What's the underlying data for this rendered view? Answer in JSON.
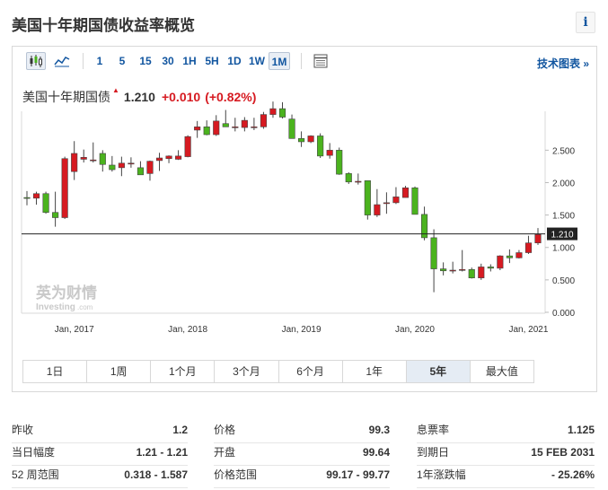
{
  "title": "美国十年期国债收益率概览",
  "info_icon": "i",
  "toolbar": {
    "chart_icons": [
      "candlestick-icon",
      "area-chart-icon"
    ],
    "intervals": [
      "1",
      "5",
      "15",
      "30",
      "1H",
      "5H",
      "1D",
      "1W",
      "1M"
    ],
    "active_interval": "1M",
    "table_icon": "table-icon",
    "tech_link": "技术图表 »"
  },
  "quote": {
    "name": "美国十年期国债",
    "price": "1.210",
    "change": "+0.010",
    "change_pct": "(+0.82%)"
  },
  "watermark": {
    "brand_cn": "英为财情",
    "brand_en": "Investing",
    "brand_suffix": ".com"
  },
  "colors": {
    "up": "#d61a21",
    "down": "#4bb31e",
    "link": "#1256a0"
  },
  "range_tabs": [
    "1日",
    "1周",
    "1个月",
    "3个月",
    "6个月",
    "1年",
    "5年",
    "最大值"
  ],
  "active_range": "5年",
  "chart_data": {
    "type": "candlestick",
    "x_tick_labels": [
      "Jan, 2017",
      "Jan, 2018",
      "Jan, 2019",
      "Jan, 2020",
      "Jan, 2021"
    ],
    "y_tick_labels": [
      "0.000",
      "0.500",
      "1.000",
      "1.500",
      "2.000",
      "2.500"
    ],
    "ylim": [
      0,
      3.1
    ],
    "last_price_label": "1.210",
    "last_price": 1.21,
    "months": [
      "2016-08",
      "2016-09",
      "2016-10",
      "2016-11",
      "2016-12",
      "2017-01",
      "2017-02",
      "2017-03",
      "2017-04",
      "2017-05",
      "2017-06",
      "2017-07",
      "2017-08",
      "2017-09",
      "2017-10",
      "2017-11",
      "2017-12",
      "2018-01",
      "2018-02",
      "2018-03",
      "2018-04",
      "2018-05",
      "2018-06",
      "2018-07",
      "2018-08",
      "2018-09",
      "2018-10",
      "2018-11",
      "2018-12",
      "2019-01",
      "2019-02",
      "2019-03",
      "2019-04",
      "2019-05",
      "2019-06",
      "2019-07",
      "2019-08",
      "2019-09",
      "2019-10",
      "2019-11",
      "2019-12",
      "2020-01",
      "2020-02",
      "2020-03",
      "2020-04",
      "2020-05",
      "2020-06",
      "2020-07",
      "2020-08",
      "2020-09",
      "2020-10",
      "2020-11",
      "2020-12",
      "2021-01",
      "2021-02"
    ],
    "open": [
      1.77,
      1.76,
      1.83,
      1.54,
      1.46,
      2.17,
      2.36,
      2.35,
      2.45,
      2.27,
      2.23,
      2.29,
      2.23,
      2.14,
      2.34,
      2.37,
      2.36,
      2.4,
      2.81,
      2.86,
      2.74,
      2.91,
      2.86,
      2.85,
      2.85,
      2.86,
      3.05,
      3.14,
      2.98,
      2.68,
      2.63,
      2.72,
      2.42,
      2.5,
      2.14,
      2.02,
      2.03,
      1.5,
      1.68,
      1.69,
      1.77,
      1.92,
      1.51,
      1.15,
      0.67,
      0.64,
      0.65,
      0.66,
      0.53,
      0.7,
      0.68,
      0.87,
      0.84,
      0.92,
      1.07
    ],
    "close": [
      1.76,
      1.83,
      1.54,
      1.46,
      2.37,
      2.45,
      2.39,
      2.35,
      2.28,
      2.2,
      2.3,
      2.3,
      2.12,
      2.33,
      2.38,
      2.41,
      2.41,
      2.71,
      2.86,
      2.74,
      2.95,
      2.86,
      2.86,
      2.96,
      2.86,
      3.05,
      3.14,
      3.01,
      2.68,
      2.63,
      2.72,
      2.41,
      2.5,
      2.13,
      2.01,
      2.02,
      1.5,
      1.66,
      1.69,
      1.78,
      1.92,
      1.51,
      1.15,
      0.67,
      0.64,
      0.65,
      0.66,
      0.53,
      0.7,
      0.68,
      0.87,
      0.84,
      0.92,
      1.07,
      1.2
    ],
    "high": [
      1.87,
      1.86,
      1.86,
      1.86,
      2.4,
      2.64,
      2.51,
      2.62,
      2.5,
      2.41,
      2.4,
      2.39,
      2.33,
      2.34,
      2.46,
      2.42,
      2.5,
      2.73,
      2.95,
      2.96,
      3.04,
      3.12,
      3.0,
      3.01,
      3.0,
      3.09,
      3.25,
      3.24,
      3.05,
      2.79,
      2.73,
      2.76,
      2.61,
      2.54,
      2.16,
      2.14,
      2.03,
      1.9,
      1.85,
      1.93,
      1.95,
      1.94,
      1.63,
      1.28,
      0.77,
      0.78,
      0.96,
      0.69,
      0.75,
      0.74,
      0.88,
      0.97,
      0.96,
      1.18,
      1.3
    ],
    "low": [
      1.65,
      1.66,
      1.52,
      1.32,
      1.44,
      2.04,
      2.31,
      2.31,
      2.17,
      2.17,
      2.1,
      2.23,
      2.12,
      2.03,
      2.18,
      2.3,
      2.35,
      2.39,
      2.69,
      2.73,
      2.72,
      2.86,
      2.79,
      2.79,
      2.81,
      2.83,
      3.0,
      2.99,
      2.68,
      2.55,
      2.61,
      2.38,
      2.37,
      2.12,
      1.98,
      1.97,
      1.43,
      1.47,
      1.52,
      1.67,
      1.77,
      1.51,
      1.11,
      0.31,
      0.57,
      0.6,
      0.63,
      0.52,
      0.5,
      0.63,
      0.65,
      0.76,
      0.83,
      0.9,
      1.04
    ]
  },
  "stats": {
    "col1": [
      {
        "label": "昨收",
        "value": "1.2"
      },
      {
        "label": "当日幅度",
        "value": "1.21 - 1.21"
      },
      {
        "label": "52 周范围",
        "value": "0.318 - 1.587"
      }
    ],
    "col2": [
      {
        "label": "价格",
        "value": "99.3"
      },
      {
        "label": "开盘",
        "value": "99.64"
      },
      {
        "label": "价格范围",
        "value": "99.17 - 99.77"
      }
    ],
    "col3": [
      {
        "label": "息票率",
        "value": "1.125"
      },
      {
        "label": "到期日",
        "value": "15 FEB 2031"
      },
      {
        "label": "1年涨跌幅",
        "value": "- 25.26%"
      }
    ]
  }
}
